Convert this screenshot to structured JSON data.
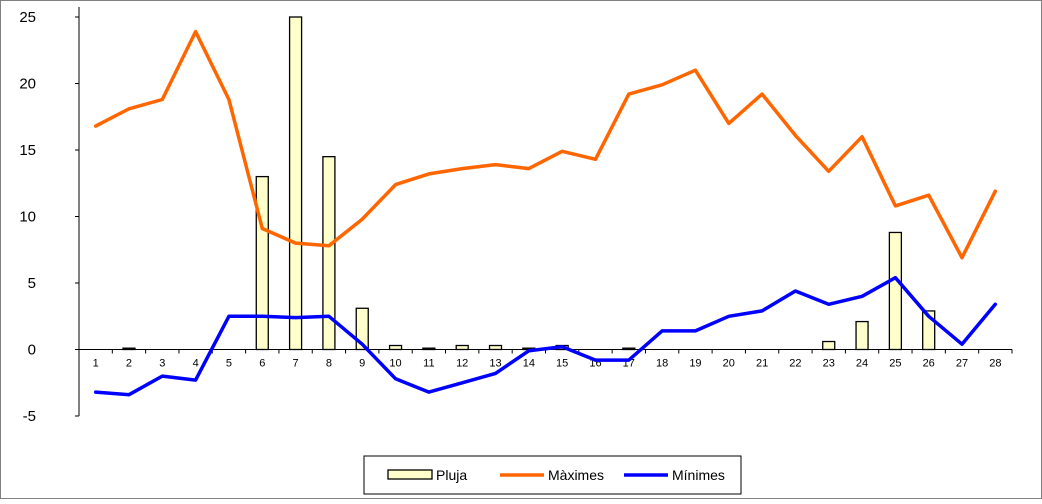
{
  "chart_data": {
    "type": "bar",
    "title": "",
    "xlabel": "",
    "ylabel": "",
    "ylim": [
      -5,
      25
    ],
    "yticks": [
      -5,
      0,
      5,
      10,
      15,
      20,
      25
    ],
    "categories": [
      "1",
      "2",
      "3",
      "4",
      "5",
      "6",
      "7",
      "8",
      "9",
      "10",
      "11",
      "12",
      "13",
      "14",
      "15",
      "16",
      "17",
      "18",
      "19",
      "20",
      "21",
      "22",
      "23",
      "24",
      "25",
      "26",
      "27",
      "28"
    ],
    "grid": false,
    "legend_position": "bottom",
    "series": [
      {
        "name": "Pluja",
        "type": "bar",
        "color": "#ffffcc",
        "values": [
          0,
          0.1,
          0,
          0,
          0,
          13,
          25,
          14.5,
          3.1,
          0.3,
          0.1,
          0.3,
          0.3,
          0.1,
          0.3,
          0,
          0.1,
          0,
          0,
          0,
          0,
          0,
          0.6,
          2.1,
          8.8,
          2.9,
          0,
          0
        ]
      },
      {
        "name": "Màximes",
        "type": "line",
        "color": "#ff6600",
        "values": [
          16.8,
          18.1,
          18.8,
          23.9,
          18.8,
          9.1,
          8.0,
          7.8,
          9.8,
          12.4,
          13.2,
          13.6,
          13.9,
          13.6,
          14.9,
          14.3,
          19.2,
          19.9,
          21.0,
          17.0,
          19.2,
          16.1,
          13.4,
          16.0,
          10.8,
          11.6,
          6.9,
          11.9
        ]
      },
      {
        "name": "Mínimes",
        "type": "line",
        "color": "#0000ff",
        "values": [
          -3.2,
          -3.4,
          -2.0,
          -2.3,
          2.5,
          2.5,
          2.4,
          2.5,
          0.4,
          -2.2,
          -3.2,
          -2.5,
          -1.8,
          -0.1,
          0.2,
          -0.8,
          -0.8,
          1.4,
          1.4,
          2.5,
          2.9,
          4.4,
          3.4,
          4.0,
          5.4,
          2.5,
          0.4,
          3.4
        ]
      }
    ]
  }
}
